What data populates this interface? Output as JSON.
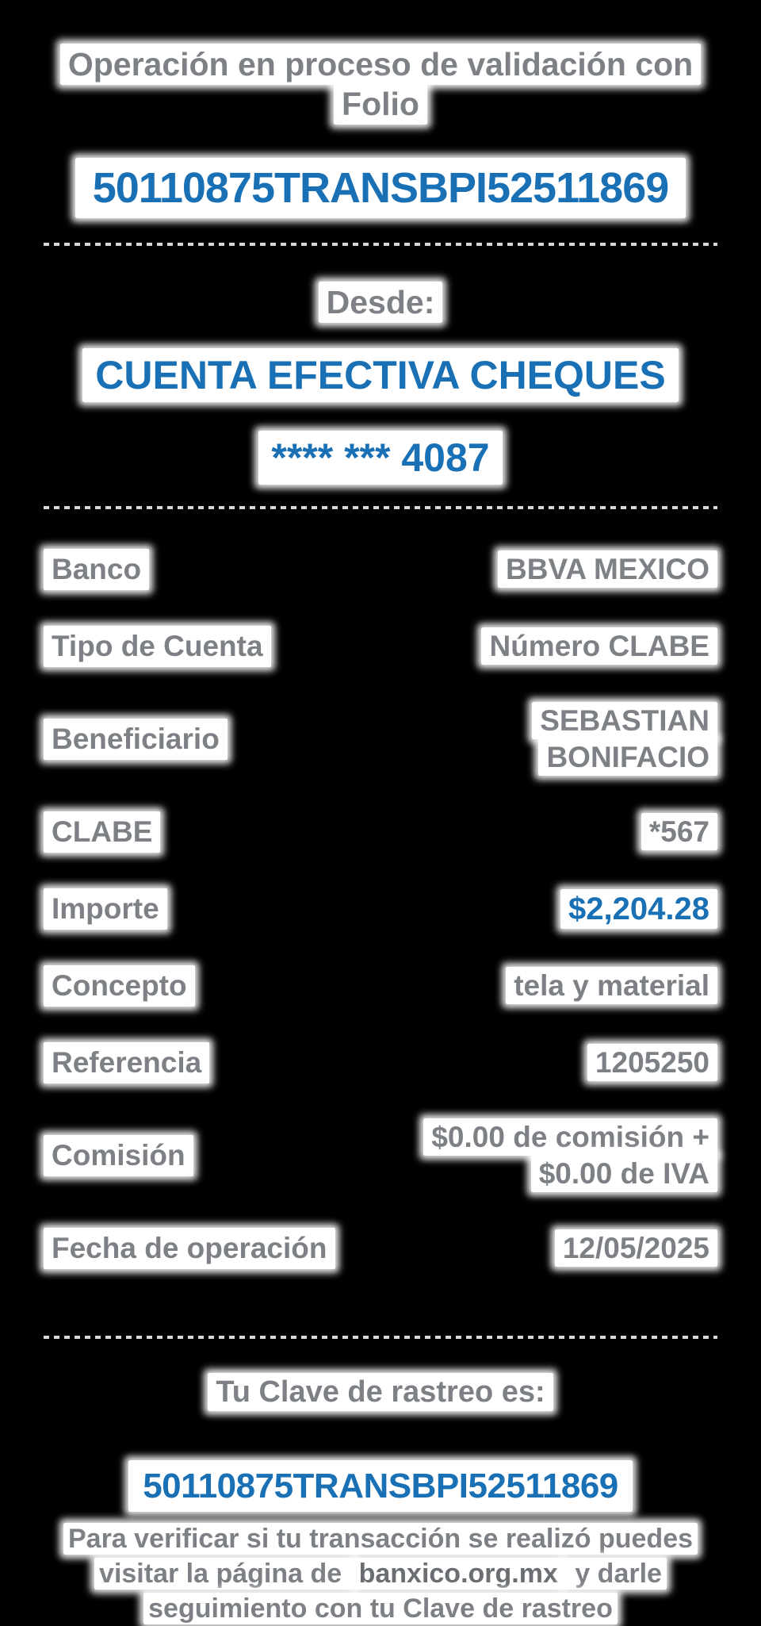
{
  "status": {
    "title": "Operación en proceso de validación con Folio",
    "folio": "50110875TRANSBPI52511869"
  },
  "from": {
    "label": "Desde:",
    "account_name": "CUENTA EFECTIVA CHEQUES",
    "account_mask": "**** *** 4087"
  },
  "details": {
    "rows": [
      {
        "label": "Banco",
        "value": "BBVA MEXICO"
      },
      {
        "label": "Tipo de Cuenta",
        "value": "Número CLABE"
      },
      {
        "label": "Beneficiario",
        "value": "SEBASTIAN\nBONIFACIO"
      },
      {
        "label": "CLABE",
        "value": "*567"
      },
      {
        "label": "Importe",
        "value": "$2,204.28"
      },
      {
        "label": "Concepto",
        "value": "tela y material"
      },
      {
        "label": "Referencia",
        "value": "1205250"
      },
      {
        "label": "Comisión",
        "value": "$0.00 de comisión +\n$0.00 de IVA"
      },
      {
        "label": "Fecha de operación",
        "value": "12/05/2025"
      }
    ]
  },
  "tracking": {
    "title": "Tu Clave de rastreo es:",
    "key": "50110875TRANSBPI52511869",
    "note_before": "Para verificar si tu transacción se realizó puedes visitar la página de ",
    "note_link": "banxico.org.mx",
    "note_after": " y darle seguimiento con tu Clave de rastreo"
  },
  "colors": {
    "background": "#000000",
    "text_gray": "#7d8186",
    "accent_blue": "#1a70b4",
    "highlight_white": "#ffffff",
    "divider_gray": "#d7d7d7"
  }
}
